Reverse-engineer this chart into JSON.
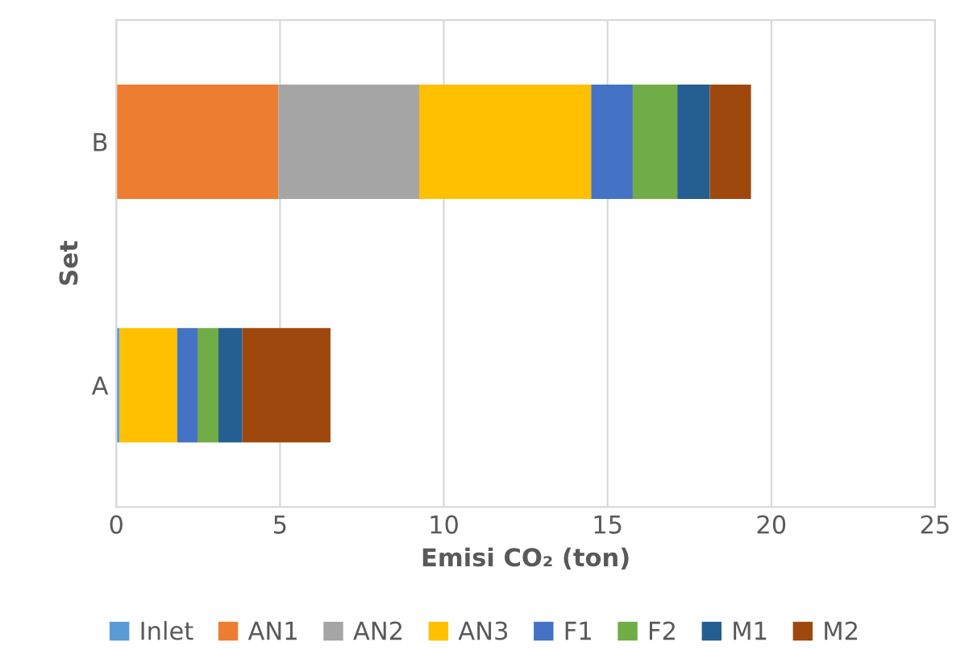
{
  "chart_data": {
    "type": "bar",
    "orientation": "horizontal",
    "stacked": true,
    "xlabel": "Emisi CO₂ (ton)",
    "ylabel": "Set",
    "categories": [
      "B",
      "A"
    ],
    "series": [
      {
        "name": "Inlet",
        "color": "#5b9bd5",
        "values": [
          0,
          0.1
        ]
      },
      {
        "name": "AN1",
        "color": "#ed7d31",
        "values": [
          4.95,
          0
        ]
      },
      {
        "name": "AN2",
        "color": "#a5a5a5",
        "values": [
          4.3,
          0
        ]
      },
      {
        "name": "AN3",
        "color": "#ffc000",
        "values": [
          5.25,
          1.76
        ]
      },
      {
        "name": "F1",
        "color": "#4472c4",
        "values": [
          1.27,
          0.62
        ]
      },
      {
        "name": "F2",
        "color": "#70ad47",
        "values": [
          1.36,
          0.64
        ]
      },
      {
        "name": "M1",
        "color": "#255e91",
        "values": [
          0.99,
          0.73
        ]
      },
      {
        "name": "M2",
        "color": "#9e480e",
        "values": [
          1.26,
          2.69
        ]
      }
    ],
    "xlim": [
      0,
      25
    ],
    "xticks": [
      0,
      5,
      10,
      15,
      20,
      25
    ],
    "grid": "x",
    "legend": "bottom"
  }
}
